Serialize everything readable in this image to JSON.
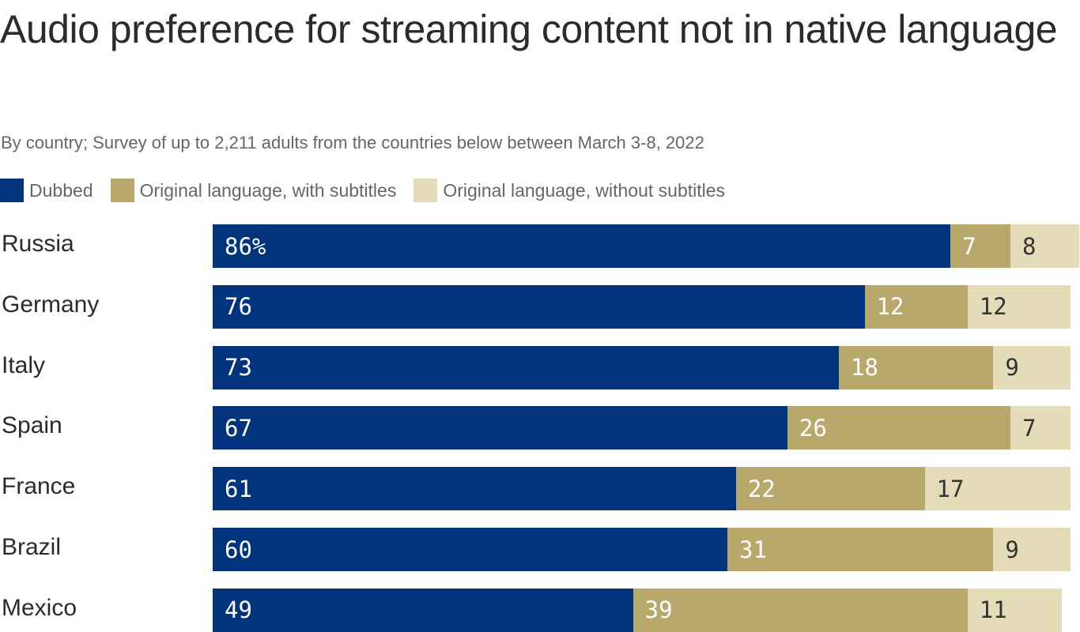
{
  "chart_data": {
    "type": "bar",
    "orientation": "horizontal",
    "stacked": true,
    "title": "Audio preference for streaming content not in native language",
    "subtitle": "By country; Survey of up to 2,211 adults from the countries below between March 3-8, 2022",
    "unit": "%",
    "legend_position": "top-left",
    "grid": false,
    "categories": [
      "Russia",
      "Germany",
      "Italy",
      "Spain",
      "France",
      "Brazil",
      "Mexico"
    ],
    "series": [
      {
        "name": "Dubbed",
        "color": "#02347e",
        "label_color": "#ffffff",
        "values": [
          86,
          76,
          73,
          67,
          61,
          60,
          49
        ]
      },
      {
        "name": "Original language, with subtitles",
        "color": "#b9a86b",
        "label_color": "#ffffff",
        "values": [
          7,
          12,
          18,
          26,
          22,
          31,
          39
        ]
      },
      {
        "name": "Original language, without subtitles",
        "color": "#e4dcb9",
        "label_color": "#333333",
        "values": [
          8,
          12,
          9,
          7,
          17,
          9,
          11
        ]
      }
    ]
  }
}
